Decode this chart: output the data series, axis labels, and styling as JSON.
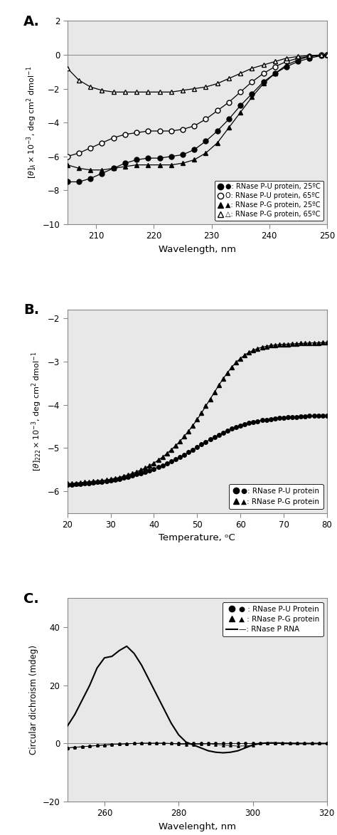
{
  "panel_A": {
    "label": "A.",
    "xlabel": "Wavelength, nm",
    "ylabel": "[$\\theta$]$_\\lambda$ x 10$^{-3}$, deg cm$^2$ dmol$^{-1}$",
    "xlim": [
      205,
      250
    ],
    "ylim": [
      -10,
      2
    ],
    "xticks": [
      210,
      220,
      230,
      240,
      250
    ],
    "yticks": [
      -10,
      -8,
      -6,
      -4,
      -2,
      0,
      2
    ],
    "series": {
      "PU_25": {
        "x": [
          205,
          207,
          209,
          211,
          213,
          215,
          217,
          219,
          221,
          223,
          225,
          227,
          229,
          231,
          233,
          235,
          237,
          239,
          241,
          243,
          245,
          247,
          249,
          250
        ],
        "y": [
          -7.5,
          -7.5,
          -7.3,
          -7.0,
          -6.7,
          -6.4,
          -6.2,
          -6.1,
          -6.1,
          -6.0,
          -5.9,
          -5.6,
          -5.1,
          -4.5,
          -3.8,
          -3.0,
          -2.3,
          -1.6,
          -1.1,
          -0.7,
          -0.4,
          -0.2,
          -0.05,
          0.0
        ]
      },
      "PU_65": {
        "x": [
          205,
          207,
          209,
          211,
          213,
          215,
          217,
          219,
          221,
          223,
          225,
          227,
          229,
          231,
          233,
          235,
          237,
          239,
          241,
          243,
          245,
          247,
          249,
          250
        ],
        "y": [
          -6.0,
          -5.8,
          -5.5,
          -5.2,
          -4.9,
          -4.7,
          -4.6,
          -4.5,
          -4.5,
          -4.5,
          -4.4,
          -4.2,
          -3.8,
          -3.3,
          -2.8,
          -2.2,
          -1.6,
          -1.1,
          -0.7,
          -0.4,
          -0.2,
          -0.1,
          -0.02,
          0.0
        ]
      },
      "PG_25": {
        "x": [
          205,
          207,
          209,
          211,
          213,
          215,
          217,
          219,
          221,
          223,
          225,
          227,
          229,
          231,
          233,
          235,
          237,
          239,
          241,
          243,
          245,
          247,
          249,
          250
        ],
        "y": [
          -6.5,
          -6.7,
          -6.8,
          -6.8,
          -6.7,
          -6.6,
          -6.5,
          -6.5,
          -6.5,
          -6.5,
          -6.4,
          -6.2,
          -5.8,
          -5.2,
          -4.3,
          -3.4,
          -2.5,
          -1.7,
          -1.1,
          -0.6,
          -0.3,
          -0.1,
          -0.02,
          0.0
        ]
      },
      "PG_65": {
        "x": [
          205,
          207,
          209,
          211,
          213,
          215,
          217,
          219,
          221,
          223,
          225,
          227,
          229,
          231,
          233,
          235,
          237,
          239,
          241,
          243,
          245,
          247,
          249,
          250
        ],
        "y": [
          -0.8,
          -1.5,
          -1.9,
          -2.1,
          -2.2,
          -2.2,
          -2.2,
          -2.2,
          -2.2,
          -2.2,
          -2.1,
          -2.0,
          -1.9,
          -1.7,
          -1.4,
          -1.1,
          -0.8,
          -0.6,
          -0.4,
          -0.2,
          -0.1,
          -0.05,
          -0.01,
          0.0
        ]
      }
    },
    "legend": [
      {
        "marker": "o",
        "filled": true,
        "label": "●: RNase P-U protein, 25ºC"
      },
      {
        "marker": "o",
        "filled": false,
        "label": "O: RNase P-U protein, 65ºC"
      },
      {
        "marker": "^",
        "filled": true,
        "label": "▲: RNase P-G protein, 25ºC"
      },
      {
        "marker": "^",
        "filled": false,
        "label": "△: RNase P-G protein, 65ºC"
      }
    ]
  },
  "panel_B": {
    "label": "B.",
    "xlabel": "Temperature, ᵒC",
    "ylabel": "[$\\theta$]$_{222}$ x 10$^{-3}$, deg cm$^2$ dmol$^{-1}$",
    "xlim": [
      20,
      80
    ],
    "ylim": [
      -6.5,
      -1.8
    ],
    "xticks": [
      20,
      30,
      40,
      50,
      60,
      70,
      80
    ],
    "yticks": [
      -6,
      -5,
      -4,
      -3,
      -2
    ],
    "series": {
      "PU": {
        "x": [
          20,
          21,
          22,
          23,
          24,
          25,
          26,
          27,
          28,
          29,
          30,
          31,
          32,
          33,
          34,
          35,
          36,
          37,
          38,
          39,
          40,
          41,
          42,
          43,
          44,
          45,
          46,
          47,
          48,
          49,
          50,
          51,
          52,
          53,
          54,
          55,
          56,
          57,
          58,
          59,
          60,
          61,
          62,
          63,
          64,
          65,
          66,
          67,
          68,
          69,
          70,
          71,
          72,
          73,
          74,
          75,
          76,
          77,
          78,
          79,
          80
        ],
        "y": [
          -5.85,
          -5.85,
          -5.84,
          -5.83,
          -5.82,
          -5.81,
          -5.8,
          -5.79,
          -5.78,
          -5.77,
          -5.75,
          -5.73,
          -5.71,
          -5.69,
          -5.67,
          -5.64,
          -5.61,
          -5.58,
          -5.55,
          -5.52,
          -5.48,
          -5.44,
          -5.4,
          -5.36,
          -5.31,
          -5.26,
          -5.21,
          -5.16,
          -5.1,
          -5.04,
          -4.98,
          -4.92,
          -4.86,
          -4.8,
          -4.75,
          -4.7,
          -4.65,
          -4.6,
          -4.55,
          -4.51,
          -4.48,
          -4.45,
          -4.42,
          -4.4,
          -4.38,
          -4.36,
          -4.35,
          -4.33,
          -4.32,
          -4.31,
          -4.3,
          -4.29,
          -4.29,
          -4.28,
          -4.27,
          -4.27,
          -4.26,
          -4.26,
          -4.25,
          -4.25,
          -4.25
        ]
      },
      "PG": {
        "x": [
          20,
          21,
          22,
          23,
          24,
          25,
          26,
          27,
          28,
          29,
          30,
          31,
          32,
          33,
          34,
          35,
          36,
          37,
          38,
          39,
          40,
          41,
          42,
          43,
          44,
          45,
          46,
          47,
          48,
          49,
          50,
          51,
          52,
          53,
          54,
          55,
          56,
          57,
          58,
          59,
          60,
          61,
          62,
          63,
          64,
          65,
          66,
          67,
          68,
          69,
          70,
          71,
          72,
          73,
          74,
          75,
          76,
          77,
          78,
          79,
          80
        ],
        "y": [
          -5.82,
          -5.82,
          -5.81,
          -5.8,
          -5.79,
          -5.78,
          -5.77,
          -5.76,
          -5.75,
          -5.74,
          -5.72,
          -5.7,
          -5.68,
          -5.65,
          -5.62,
          -5.59,
          -5.55,
          -5.51,
          -5.46,
          -5.41,
          -5.35,
          -5.28,
          -5.21,
          -5.13,
          -5.04,
          -4.95,
          -4.85,
          -4.73,
          -4.61,
          -4.48,
          -4.34,
          -4.19,
          -4.03,
          -3.87,
          -3.71,
          -3.55,
          -3.4,
          -3.26,
          -3.13,
          -3.02,
          -2.93,
          -2.85,
          -2.79,
          -2.74,
          -2.7,
          -2.67,
          -2.65,
          -2.63,
          -2.62,
          -2.61,
          -2.6,
          -2.6,
          -2.59,
          -2.59,
          -2.58,
          -2.58,
          -2.57,
          -2.57,
          -2.57,
          -2.56,
          -2.56
        ]
      }
    },
    "legend": [
      {
        "marker": "o",
        "filled": true,
        "label": "●: RNase P-U protein"
      },
      {
        "marker": "^",
        "filled": true,
        "label": "▲: RNase P-G protein"
      }
    ]
  },
  "panel_C": {
    "label": "C.",
    "xlabel": "Wavelenght, nm",
    "ylabel": "Circular dichroism (mdeg)",
    "xlim": [
      250,
      320
    ],
    "ylim": [
      -20,
      50
    ],
    "xticks": [
      260,
      280,
      300,
      320
    ],
    "yticks": [
      -20,
      0,
      20,
      40
    ],
    "series": {
      "PU": {
        "x": [
          250,
          252,
          254,
          256,
          258,
          260,
          262,
          264,
          266,
          268,
          270,
          272,
          274,
          276,
          278,
          280,
          282,
          284,
          286,
          288,
          290,
          292,
          294,
          296,
          298,
          300,
          302,
          304,
          306,
          308,
          310,
          312,
          314,
          316,
          318,
          320
        ],
        "y": [
          -1.5,
          -1.3,
          -1.1,
          -0.9,
          -0.7,
          -0.5,
          -0.3,
          -0.2,
          -0.1,
          0.0,
          0.1,
          0.1,
          0.1,
          0.1,
          0.0,
          0.0,
          0.0,
          0.0,
          0.0,
          0.0,
          0.0,
          0.0,
          0.0,
          0.0,
          0.0,
          0.0,
          0.1,
          0.1,
          0.1,
          0.1,
          0.1,
          0.0,
          0.0,
          0.0,
          0.0,
          0.0
        ]
      },
      "PG": {
        "x": [
          250,
          252,
          254,
          256,
          258,
          260,
          262,
          264,
          266,
          268,
          270,
          272,
          274,
          276,
          278,
          280,
          282,
          284,
          286,
          288,
          290,
          292,
          294,
          296,
          298,
          300,
          302,
          304,
          306,
          308,
          310,
          312,
          314,
          316,
          318,
          320
        ],
        "y": [
          -1.5,
          -1.3,
          -1.1,
          -0.9,
          -0.7,
          -0.5,
          -0.3,
          -0.2,
          -0.1,
          0.0,
          0.1,
          0.1,
          0.1,
          0.1,
          0.0,
          -0.2,
          -0.3,
          -0.3,
          -0.2,
          -0.1,
          -0.3,
          -0.5,
          -0.7,
          -0.9,
          -0.8,
          -0.6,
          0.1,
          0.2,
          0.2,
          0.2,
          0.1,
          0.1,
          0.0,
          0.0,
          0.0,
          0.0
        ]
      },
      "RNA": {
        "x": [
          250,
          252,
          254,
          256,
          258,
          260,
          262,
          264,
          266,
          268,
          270,
          272,
          274,
          276,
          278,
          280,
          282,
          284,
          286,
          288,
          290,
          292,
          294,
          296,
          298,
          300,
          302,
          304,
          306,
          308,
          310,
          312,
          314,
          316,
          318,
          320
        ],
        "y": [
          6.0,
          10.0,
          15.0,
          20.0,
          26.0,
          29.5,
          30.0,
          32.0,
          33.5,
          31.0,
          27.0,
          22.0,
          17.0,
          12.0,
          7.0,
          3.0,
          0.5,
          -0.5,
          -1.5,
          -2.5,
          -3.0,
          -3.2,
          -3.0,
          -2.5,
          -1.5,
          -0.5,
          0.0,
          0.2,
          0.2,
          0.1,
          0.0,
          0.0,
          0.0,
          0.0,
          0.0,
          0.0
        ]
      }
    },
    "legend": [
      {
        "marker": "o",
        "filled": true,
        "label": "● : RNase P-U Protein"
      },
      {
        "marker": "^",
        "filled": true,
        "label": "▲ : RNase P-G protein"
      },
      {
        "line": true,
        "label": "—: RNase P RNA"
      }
    ]
  }
}
